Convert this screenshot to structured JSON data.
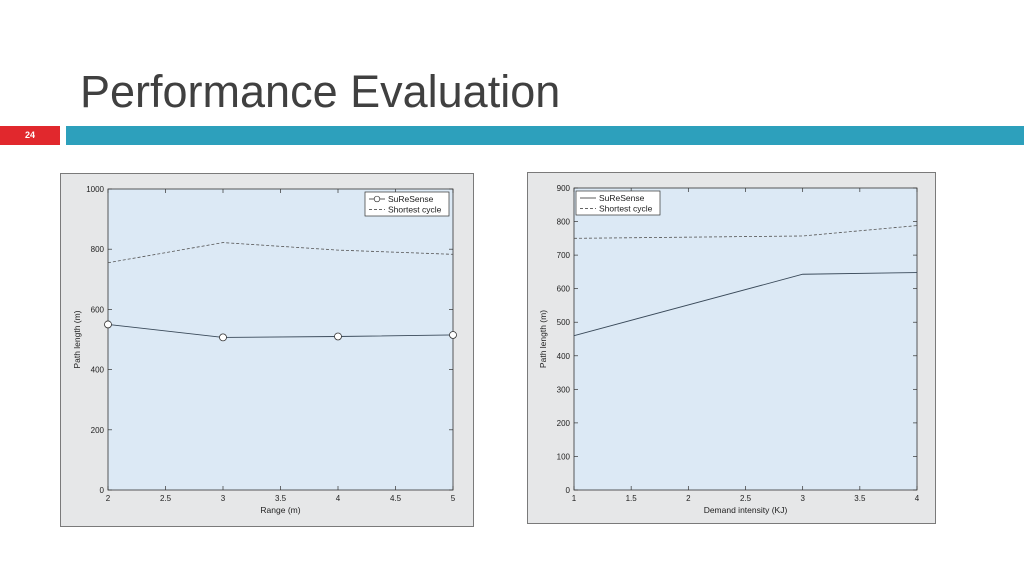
{
  "slide": {
    "title": "Performance Evaluation",
    "slide_number": "24",
    "colors": {
      "number_box": "#e1282d",
      "title_bar": "#2da0bc",
      "title_text": "#404040"
    }
  },
  "chart_data": [
    {
      "type": "line",
      "xlabel": "Range (m)",
      "ylabel": "Path length (m)",
      "xlim": [
        2,
        5
      ],
      "ylim": [
        0,
        1000
      ],
      "x_ticks": [
        "2",
        "2.5",
        "3",
        "3.5",
        "4",
        "4.5",
        "5"
      ],
      "y_ticks": [
        "0",
        "200",
        "400",
        "600",
        "800",
        "1000"
      ],
      "legend_position": "top-right",
      "plot_background": "#dce9f5",
      "series": [
        {
          "name": "SuReSense",
          "style": "solid-circle-markers",
          "x": [
            2,
            3,
            4,
            5
          ],
          "y": [
            550,
            507,
            510,
            515
          ]
        },
        {
          "name": "Shortest cycle",
          "style": "dashed",
          "x": [
            2,
            3,
            4,
            5
          ],
          "y": [
            755,
            822,
            797,
            783
          ]
        }
      ]
    },
    {
      "type": "line",
      "xlabel": "Demand intensity (KJ)",
      "ylabel": "Path length (m)",
      "xlim": [
        1,
        4
      ],
      "ylim": [
        0,
        900
      ],
      "x_ticks": [
        "1",
        "1.5",
        "2",
        "2.5",
        "3",
        "3.5",
        "4"
      ],
      "y_ticks": [
        "0",
        "100",
        "200",
        "300",
        "400",
        "500",
        "600",
        "700",
        "800",
        "900"
      ],
      "legend_position": "top-left",
      "plot_background": "#dce9f5",
      "series": [
        {
          "name": "SuReSense",
          "style": "solid",
          "x": [
            1,
            3,
            4
          ],
          "y": [
            460,
            643,
            648
          ]
        },
        {
          "name": "Shortest cycle",
          "style": "dashed",
          "x": [
            1,
            3,
            4
          ],
          "y": [
            750,
            757,
            788
          ]
        }
      ]
    }
  ]
}
